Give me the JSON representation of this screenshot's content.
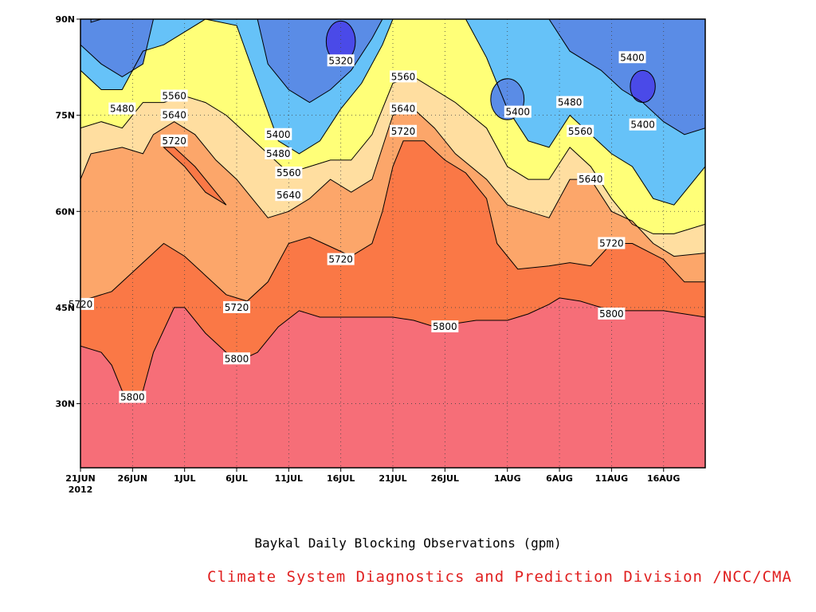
{
  "chart_data": {
    "type": "contour",
    "title": "Baykal Daily Blocking Observations (gpm)",
    "credit": "Climate System Diagnostics and Prediction Division /NCC/CMA",
    "x_axis": {
      "ticks": [
        "21JUN",
        "26JUN",
        "1JUL",
        "6JUL",
        "11JUL",
        "16JUL",
        "21JUL",
        "26JUL",
        "1AUG",
        "6AUG",
        "11AUG",
        "16AUG"
      ],
      "tick_dates": [
        "2012-06-21",
        "2012-06-26",
        "2012-07-01",
        "2012-07-06",
        "2012-07-11",
        "2012-07-16",
        "2012-07-21",
        "2012-07-26",
        "2012-08-01",
        "2012-08-06",
        "2012-08-11",
        "2012-08-16"
      ],
      "year_label": "2012",
      "range": [
        "2012-06-21",
        "2012-08-20"
      ]
    },
    "y_axis": {
      "ticks": [
        "30N",
        "45N",
        "60N",
        "75N",
        "90N"
      ],
      "tick_values": [
        30,
        45,
        60,
        75,
        90
      ],
      "range": [
        20,
        90
      ]
    },
    "levels": [
      5320,
      5400,
      5480,
      5560,
      5640,
      5720,
      5800
    ],
    "fill_colors": {
      "below_5320": "#4a4ae8",
      "5320_5400": "#5a8ce6",
      "5400_5480": "#66c2f8",
      "5480_5560": "#ffff78",
      "5560_5640": "#ffdea0",
      "5640_5720": "#fca66a",
      "5720_5800": "#fa7846",
      "above_5800": "#f66e78"
    },
    "contour_lines": [
      {
        "level": 5800,
        "points": [
          [
            "2012-06-21",
            39
          ],
          [
            "2012-06-23",
            38
          ],
          [
            "2012-06-24",
            36
          ],
          [
            "2012-06-25",
            32
          ],
          [
            "2012-06-26",
            31.5
          ],
          [
            "2012-06-27",
            32
          ],
          [
            "2012-06-28",
            38
          ],
          [
            "2012-06-30",
            45
          ],
          [
            "2012-07-01",
            45
          ],
          [
            "2012-07-03",
            41
          ],
          [
            "2012-07-05",
            38
          ],
          [
            "2012-07-06",
            36.5
          ],
          [
            "2012-07-08",
            38
          ],
          [
            "2012-07-10",
            42
          ],
          [
            "2012-07-12",
            44.5
          ],
          [
            "2012-07-14",
            43.5
          ],
          [
            "2012-07-17",
            43.5
          ],
          [
            "2012-07-21",
            43.5
          ],
          [
            "2012-07-23",
            43
          ],
          [
            "2012-07-25",
            42
          ],
          [
            "2012-07-27",
            42.5
          ],
          [
            "2012-07-29",
            43
          ],
          [
            "2012-08-01",
            43
          ],
          [
            "2012-08-03",
            44
          ],
          [
            "2012-08-05",
            45.5
          ],
          [
            "2012-08-06",
            46.5
          ],
          [
            "2012-08-08",
            46
          ],
          [
            "2012-08-10",
            45
          ],
          [
            "2012-08-12",
            44.5
          ],
          [
            "2012-08-16",
            44.5
          ],
          [
            "2012-08-20",
            43.5
          ]
        ]
      },
      {
        "level": 5720,
        "points": [
          [
            "2012-06-21",
            46
          ],
          [
            "2012-06-24",
            47.5
          ],
          [
            "2012-06-27",
            52
          ],
          [
            "2012-06-29",
            55
          ],
          [
            "2012-07-01",
            53
          ],
          [
            "2012-07-03",
            50
          ],
          [
            "2012-07-05",
            47
          ],
          [
            "2012-07-07",
            46
          ],
          [
            "2012-07-09",
            49
          ],
          [
            "2012-07-11",
            55
          ],
          [
            "2012-07-13",
            56
          ],
          [
            "2012-07-15",
            54.5
          ],
          [
            "2012-07-17",
            53
          ],
          [
            "2012-07-19",
            55
          ],
          [
            "2012-07-20",
            60
          ],
          [
            "2012-07-21",
            67
          ],
          [
            "2012-07-22",
            71
          ],
          [
            "2012-07-24",
            71
          ],
          [
            "2012-07-26",
            68
          ],
          [
            "2012-07-28",
            66
          ],
          [
            "2012-07-30",
            62
          ],
          [
            "2012-07-31",
            55
          ],
          [
            "2012-08-02",
            51
          ],
          [
            "2012-08-05",
            51.5
          ],
          [
            "2012-08-07",
            52
          ],
          [
            "2012-08-09",
            51.5
          ],
          [
            "2012-08-11",
            55
          ],
          [
            "2012-08-13",
            55
          ],
          [
            "2012-08-16",
            52.5
          ],
          [
            "2012-08-18",
            49
          ],
          [
            "2012-08-20",
            49
          ]
        ]
      },
      {
        "level": 5640,
        "points": [
          [
            "2012-06-21",
            65
          ],
          [
            "2012-06-22",
            69
          ],
          [
            "2012-06-25",
            70
          ],
          [
            "2012-06-27",
            69
          ],
          [
            "2012-06-28",
            72
          ],
          [
            "2012-06-30",
            74
          ],
          [
            "2012-07-02",
            72
          ],
          [
            "2012-07-04",
            68
          ],
          [
            "2012-07-06",
            65
          ],
          [
            "2012-07-08",
            61
          ],
          [
            "2012-07-09",
            59
          ],
          [
            "2012-07-11",
            60
          ],
          [
            "2012-07-13",
            62
          ],
          [
            "2012-07-15",
            65
          ],
          [
            "2012-07-17",
            63
          ],
          [
            "2012-07-19",
            65
          ],
          [
            "2012-07-21",
            75
          ],
          [
            "2012-07-23",
            76
          ],
          [
            "2012-07-25",
            73
          ],
          [
            "2012-07-27",
            69
          ],
          [
            "2012-07-30",
            65
          ],
          [
            "2012-08-01",
            61
          ],
          [
            "2012-08-03",
            60
          ],
          [
            "2012-08-05",
            59
          ],
          [
            "2012-08-07",
            65
          ],
          [
            "2012-08-09",
            65
          ],
          [
            "2012-08-11",
            60
          ],
          [
            "2012-08-13",
            58.5
          ],
          [
            "2012-08-15",
            55
          ],
          [
            "2012-08-17",
            53
          ],
          [
            "2012-08-20",
            53.5
          ]
        ]
      },
      {
        "level": 5560,
        "points": [
          [
            "2012-06-21",
            73
          ],
          [
            "2012-06-23",
            74
          ],
          [
            "2012-06-25",
            73
          ],
          [
            "2012-06-27",
            77
          ],
          [
            "2012-06-29",
            77
          ],
          [
            "2012-07-01",
            78
          ],
          [
            "2012-07-03",
            77
          ],
          [
            "2012-07-05",
            75
          ],
          [
            "2012-07-07",
            72
          ],
          [
            "2012-07-09",
            69
          ],
          [
            "2012-07-11",
            66
          ],
          [
            "2012-07-13",
            67
          ],
          [
            "2012-07-15",
            68
          ],
          [
            "2012-07-17",
            68
          ],
          [
            "2012-07-19",
            72
          ],
          [
            "2012-07-21",
            80
          ],
          [
            "2012-07-23",
            81
          ],
          [
            "2012-07-25",
            79
          ],
          [
            "2012-07-27",
            77
          ],
          [
            "2012-07-30",
            73
          ],
          [
            "2012-08-01",
            67
          ],
          [
            "2012-08-03",
            65
          ],
          [
            "2012-08-05",
            65
          ],
          [
            "2012-08-07",
            70
          ],
          [
            "2012-08-09",
            67
          ],
          [
            "2012-08-11",
            62
          ],
          [
            "2012-08-13",
            58
          ],
          [
            "2012-08-15",
            56.5
          ],
          [
            "2012-08-17",
            56.5
          ],
          [
            "2012-08-20",
            58
          ]
        ]
      },
      {
        "level": 5480,
        "points": [
          [
            "2012-06-21",
            82
          ],
          [
            "2012-06-23",
            79
          ],
          [
            "2012-06-25",
            79
          ],
          [
            "2012-06-27",
            85
          ],
          [
            "2012-06-29",
            86
          ],
          [
            "2012-07-01",
            88
          ],
          [
            "2012-07-03",
            90
          ],
          [
            "2012-07-06",
            89
          ],
          [
            "2012-07-08",
            80
          ],
          [
            "2012-07-10",
            71
          ],
          [
            "2012-07-12",
            69
          ],
          [
            "2012-07-14",
            71
          ],
          [
            "2012-07-16",
            76
          ],
          [
            "2012-07-18",
            80
          ],
          [
            "2012-07-20",
            86
          ],
          [
            "2012-07-21",
            90
          ],
          [
            "2012-07-28",
            90
          ],
          [
            "2012-07-30",
            84
          ],
          [
            "2012-08-01",
            76
          ],
          [
            "2012-08-03",
            71
          ],
          [
            "2012-08-05",
            70
          ],
          [
            "2012-08-07",
            75
          ],
          [
            "2012-08-09",
            72
          ],
          [
            "2012-08-11",
            69
          ],
          [
            "2012-08-13",
            67
          ],
          [
            "2012-08-15",
            62
          ],
          [
            "2012-08-17",
            61
          ],
          [
            "2012-08-20",
            67
          ]
        ]
      },
      {
        "level": 5400,
        "points": [
          [
            "2012-06-21",
            86
          ],
          [
            "2012-06-23",
            83
          ],
          [
            "2012-06-25",
            81
          ],
          [
            "2012-06-27",
            83
          ],
          [
            "2012-06-28",
            90
          ]
        ]
      },
      {
        "level": 5400,
        "points": [
          [
            "2012-07-08",
            90
          ],
          [
            "2012-07-09",
            83
          ],
          [
            "2012-07-11",
            79
          ],
          [
            "2012-07-13",
            77
          ],
          [
            "2012-07-15",
            79
          ],
          [
            "2012-07-17",
            82
          ],
          [
            "2012-07-19",
            87
          ],
          [
            "2012-07-20",
            90
          ]
        ]
      },
      {
        "level": 5400,
        "points": [
          [
            "2012-08-05",
            90
          ],
          [
            "2012-08-07",
            85
          ],
          [
            "2012-08-10",
            82
          ],
          [
            "2012-08-12",
            79
          ],
          [
            "2012-08-14",
            77
          ],
          [
            "2012-08-16",
            74
          ],
          [
            "2012-08-18",
            72
          ],
          [
            "2012-08-20",
            73
          ]
        ]
      },
      {
        "level": 5320,
        "points": [
          [
            "2012-06-22",
            90
          ],
          [
            "2012-06-22",
            89.5
          ],
          [
            "2012-06-23",
            90
          ]
        ]
      }
    ],
    "contour_labels": [
      {
        "text": "5320",
        "x": "2012-07-16",
        "y": 83.5
      },
      {
        "text": "5400",
        "x": "2012-07-10",
        "y": 72
      },
      {
        "text": "5480",
        "x": "2012-07-10",
        "y": 69
      },
      {
        "text": "5560",
        "x": "2012-07-11",
        "y": 66
      },
      {
        "text": "5640",
        "x": "2012-07-11",
        "y": 62.5
      },
      {
        "text": "5720",
        "x": "2012-07-16",
        "y": 52.5
      },
      {
        "text": "5720",
        "x": "2012-06-21",
        "y": 45.5
      },
      {
        "text": "5720",
        "x": "2012-07-06",
        "y": 45
      },
      {
        "text": "5800",
        "x": "2012-07-06",
        "y": 37
      },
      {
        "text": "5800",
        "x": "2012-06-26",
        "y": 31
      },
      {
        "text": "5480",
        "x": "2012-06-25",
        "y": 76
      },
      {
        "text": "5560",
        "x": "2012-06-30",
        "y": 78
      },
      {
        "text": "5640",
        "x": "2012-06-30",
        "y": 75
      },
      {
        "text": "5720",
        "x": "2012-06-30",
        "y": 71
      },
      {
        "text": "5560",
        "x": "2012-07-22",
        "y": 81
      },
      {
        "text": "5640",
        "x": "2012-07-22",
        "y": 76
      },
      {
        "text": "5720",
        "x": "2012-07-22",
        "y": 72.5
      },
      {
        "text": "5800",
        "x": "2012-07-26",
        "y": 42
      },
      {
        "text": "5400",
        "x": "2012-08-02",
        "y": 75.5
      },
      {
        "text": "5480",
        "x": "2012-08-07",
        "y": 77
      },
      {
        "text": "5560",
        "x": "2012-08-08",
        "y": 72.5
      },
      {
        "text": "5640",
        "x": "2012-08-09",
        "y": 65
      },
      {
        "text": "5720",
        "x": "2012-08-11",
        "y": 55
      },
      {
        "text": "5800",
        "x": "2012-08-11",
        "y": 44
      },
      {
        "text": "5400",
        "x": "2012-08-13",
        "y": 84
      },
      {
        "text": "5400",
        "x": "2012-08-14",
        "y": 73.5
      }
    ],
    "grid": true
  }
}
